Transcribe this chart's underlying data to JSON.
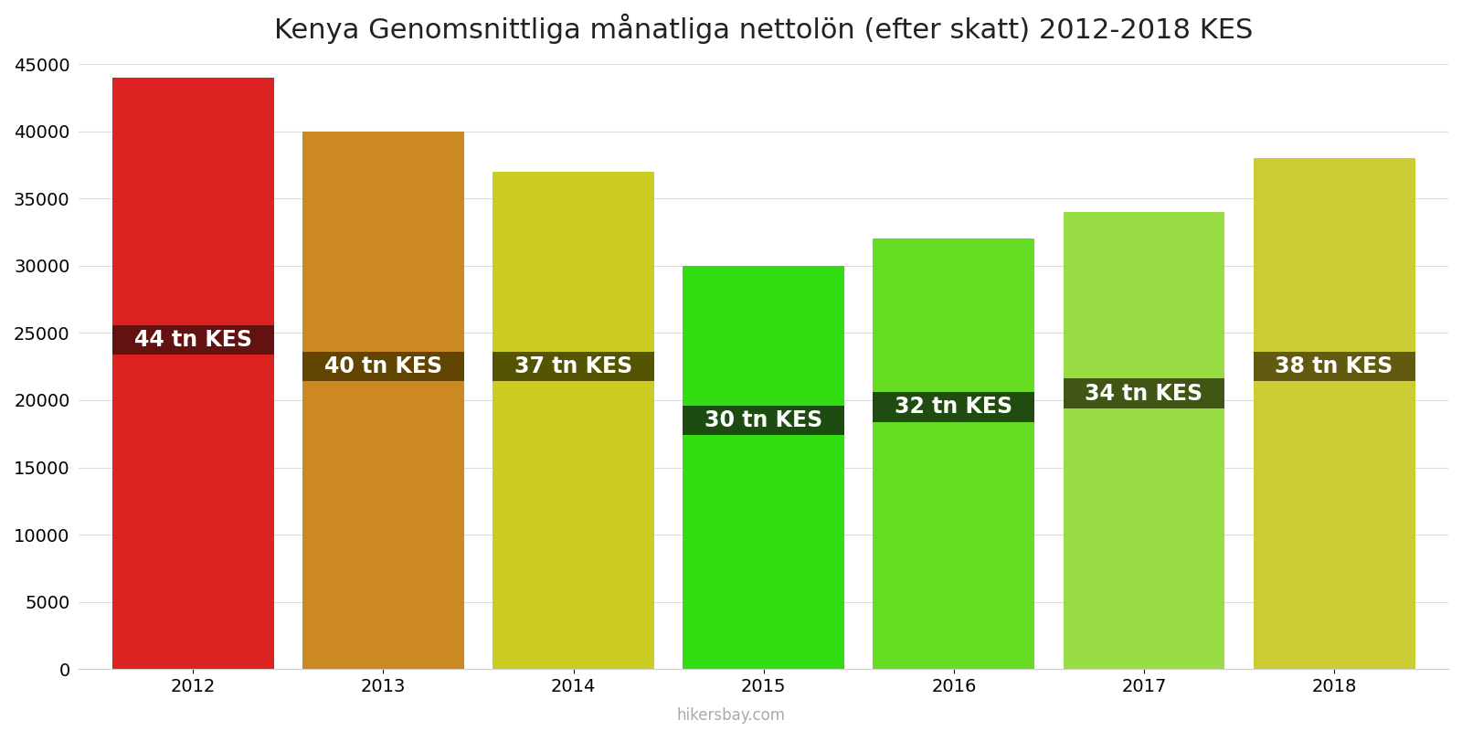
{
  "title": "Kenya Genomsnittliga månatliga nettolön (efter skatt) 2012-2018 KES",
  "years": [
    2012,
    2013,
    2014,
    2015,
    2016,
    2017,
    2018
  ],
  "values": [
    44000,
    40000,
    37000,
    30000,
    32000,
    34000,
    38000
  ],
  "labels": [
    "44 tn KES",
    "40 tn KES",
    "37 tn KES",
    "30 tn KES",
    "32 tn KES",
    "34 tn KES",
    "38 tn KES"
  ],
  "bar_colors": [
    "#dd2222",
    "#cc8822",
    "#cccc22",
    "#33dd11",
    "#66dd22",
    "#99dd44",
    "#cccc33"
  ],
  "label_bg_colors": [
    "#5a1010",
    "#5a4000",
    "#4a4a00",
    "#1a4010",
    "#1a4010",
    "#3a4a10",
    "#5a5010"
  ],
  "label_y_values": [
    24500,
    22500,
    22500,
    18500,
    19500,
    20500,
    22500
  ],
  "ylim": [
    0,
    45000
  ],
  "yticks": [
    0,
    5000,
    10000,
    15000,
    20000,
    25000,
    30000,
    35000,
    40000,
    45000
  ],
  "title_fontsize": 22,
  "label_fontsize": 17,
  "tick_fontsize": 14,
  "watermark": "hikersbay.com",
  "background_color": "#ffffff",
  "bar_width": 0.85
}
